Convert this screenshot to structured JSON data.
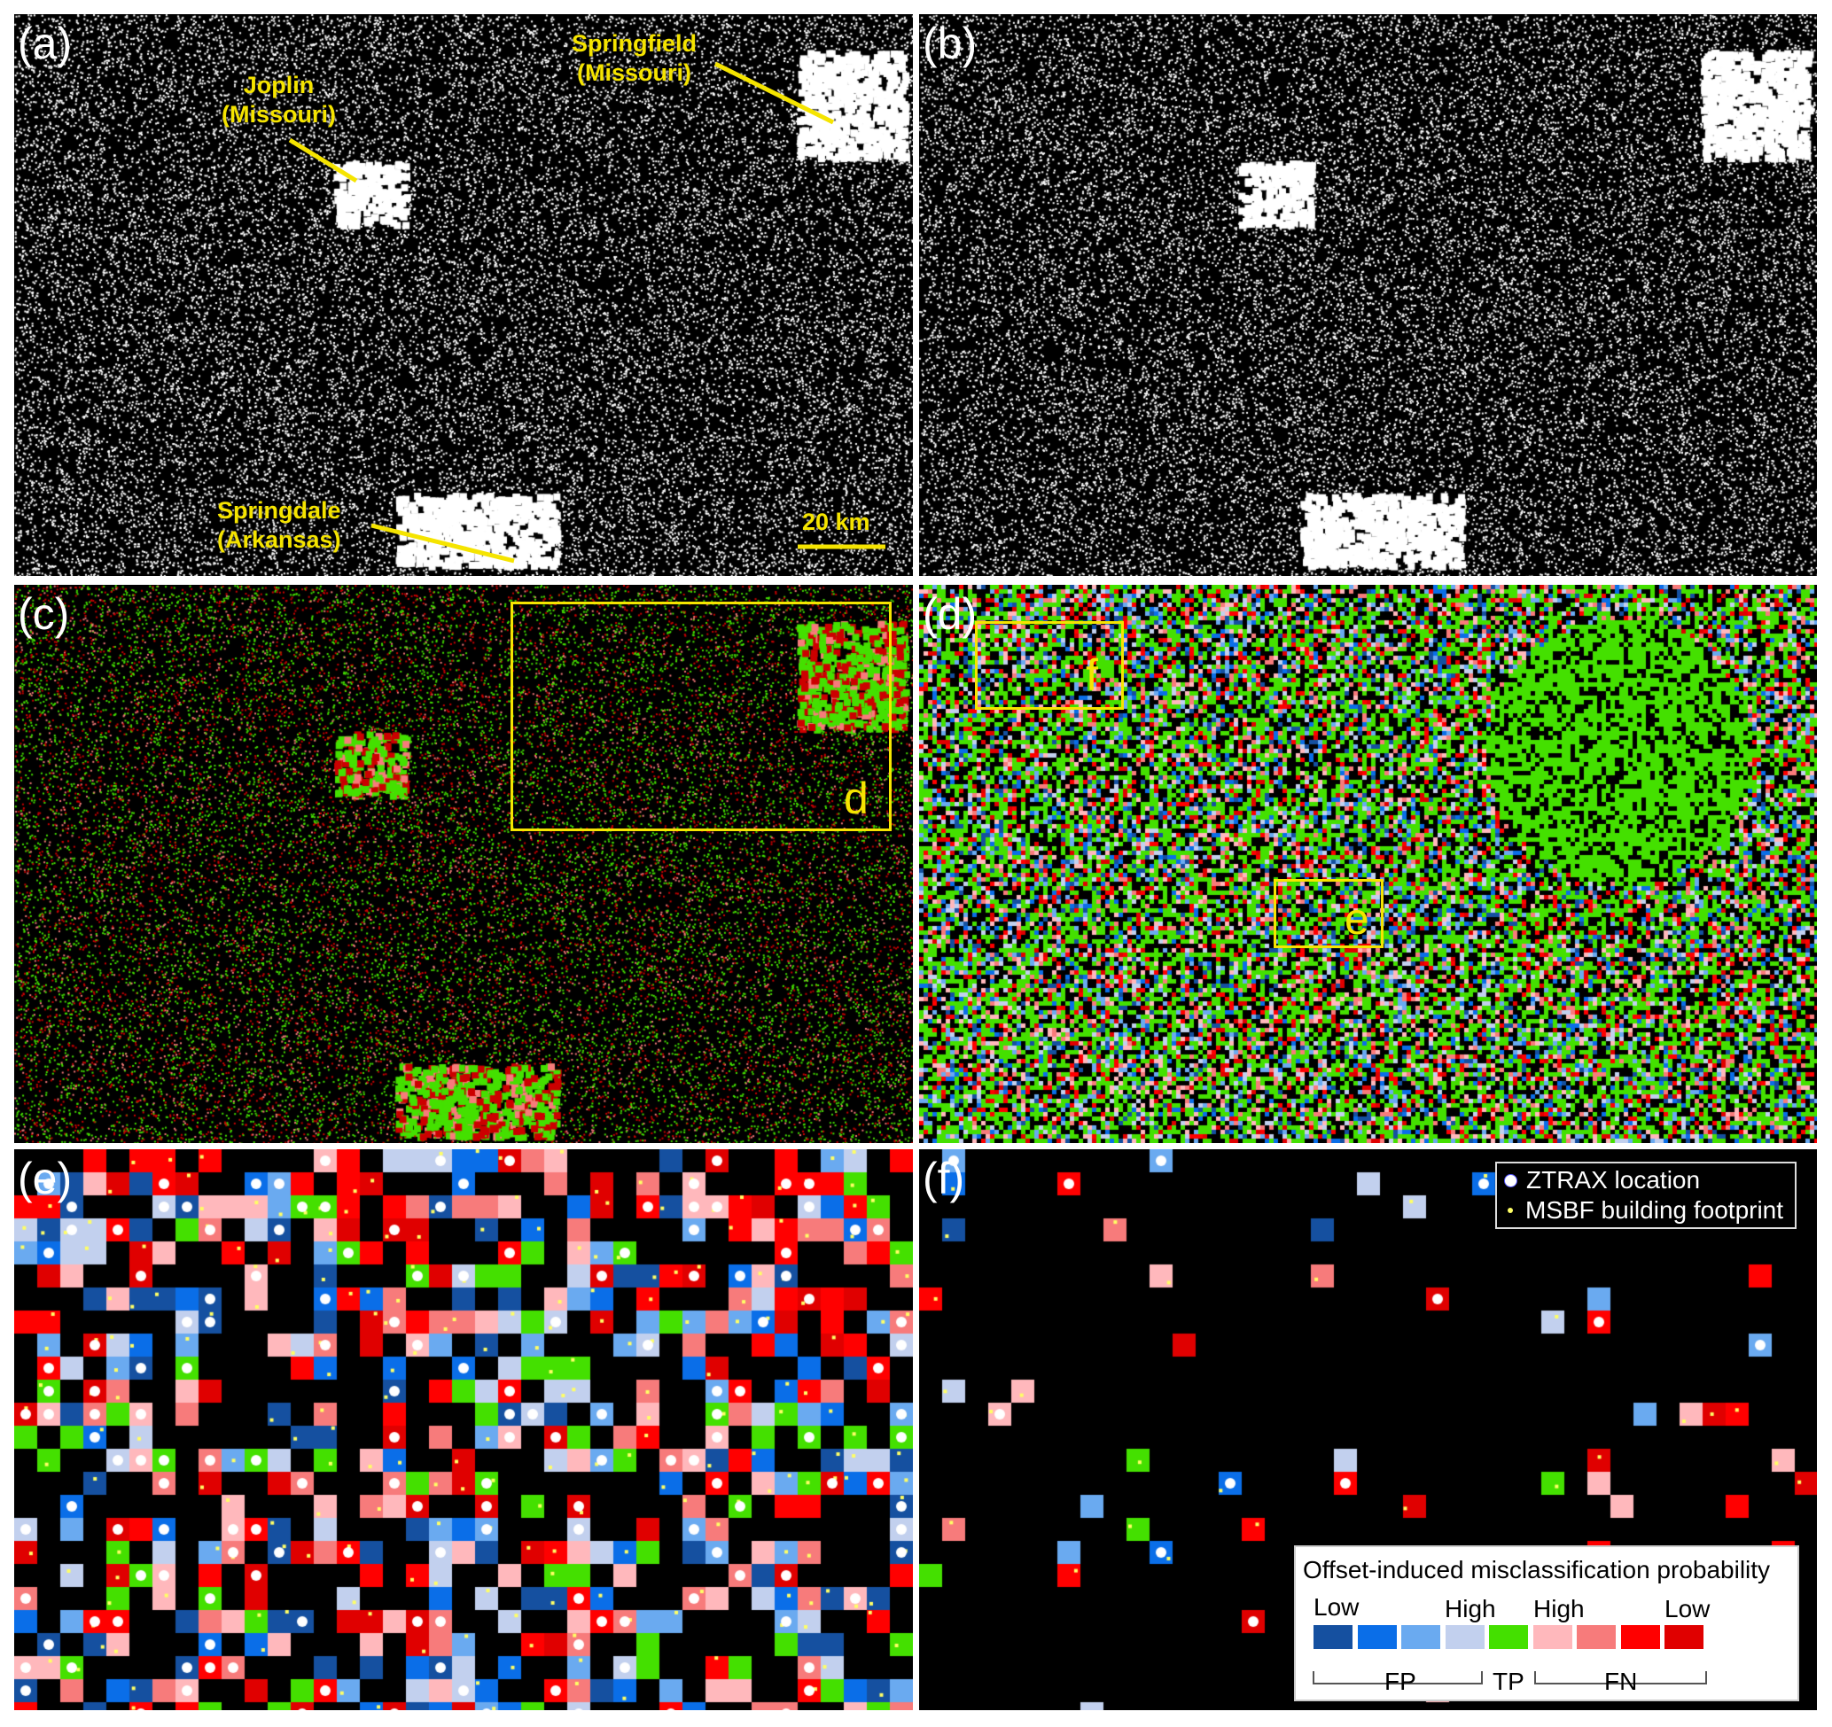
{
  "panels": {
    "a": "(a)",
    "b": "(b)",
    "c": "(c)",
    "d": "(d)",
    "e": "(e)",
    "f": "(f)"
  },
  "cities": {
    "joplin": "Joplin\n(Missouri)",
    "springfield": "Springfield\n(Missouri)",
    "springdale": "Springdale\n(Arkansas)"
  },
  "scale_bar": "20 km",
  "inset_boxes": {
    "d": "d",
    "e": "e",
    "f": "f"
  },
  "point_legend": {
    "ztrax": "ZTRAX location",
    "msbf": "MSBF building footprint"
  },
  "color_legend": {
    "title": "Offset-induced misclassification probability",
    "fp_low": "Low",
    "fp_high": "High",
    "fn_high": "High",
    "fn_low": "Low",
    "fp": "FP",
    "tp": "TP",
    "fn": "FN",
    "colors": [
      "#1550a0",
      "#0a6ee8",
      "#6aaaf0",
      "#c2d0ee",
      "#44e000",
      "#ffb8bc",
      "#f77b7b",
      "#ff0000",
      "#e00000"
    ]
  },
  "highlight_color": "#f5e400"
}
